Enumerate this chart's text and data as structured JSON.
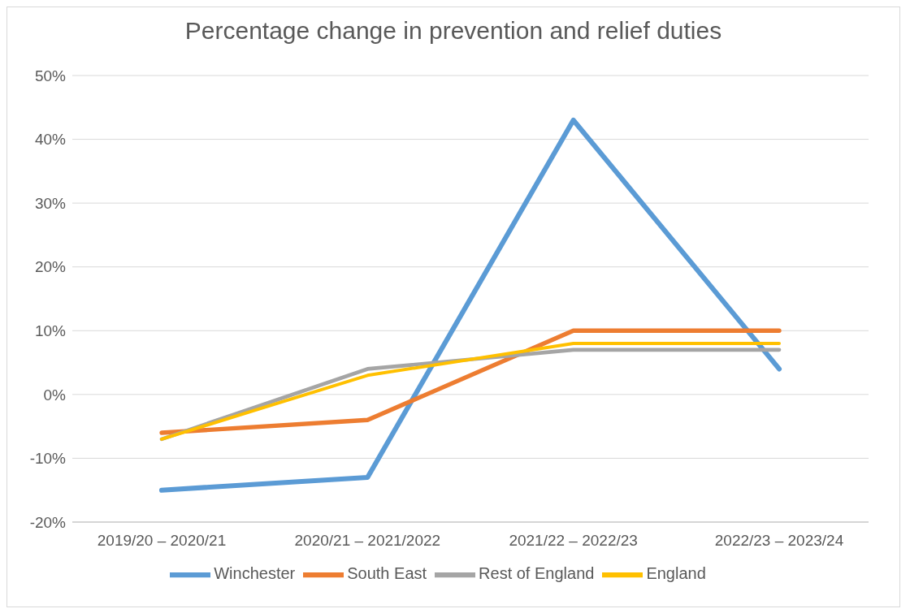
{
  "chart_data": {
    "type": "line",
    "title": "Percentage change in prevention and relief duties",
    "categories": [
      "2019/20 – 2020/21",
      "2020/21 – 2021/2022",
      "2021/22 – 2022/23",
      "2022/23 – 2023/24"
    ],
    "series": [
      {
        "name": "Winchester",
        "color": "#5b9bd5",
        "values": [
          -15,
          -13,
          43,
          4
        ]
      },
      {
        "name": "South East",
        "color": "#ed7d31",
        "values": [
          -6,
          -4,
          10,
          10
        ]
      },
      {
        "name": "Rest of England",
        "color": "#a5a5a5",
        "values": [
          -7,
          4,
          7,
          7
        ]
      },
      {
        "name": "England",
        "color": "#ffc000",
        "values": [
          -7,
          3,
          8,
          8
        ]
      }
    ],
    "ylim": [
      -20,
      50
    ],
    "yticks": [
      {
        "value": -20,
        "label": "-20%"
      },
      {
        "value": -10,
        "label": "-10%"
      },
      {
        "value": 0,
        "label": "0%"
      },
      {
        "value": 10,
        "label": "10%"
      },
      {
        "value": 20,
        "label": "20%"
      },
      {
        "value": 30,
        "label": "30%"
      },
      {
        "value": 40,
        "label": "40%"
      },
      {
        "value": 50,
        "label": "50%"
      }
    ],
    "grid": "y",
    "legend": "bottom",
    "marker": "none",
    "line_style": "solid"
  }
}
